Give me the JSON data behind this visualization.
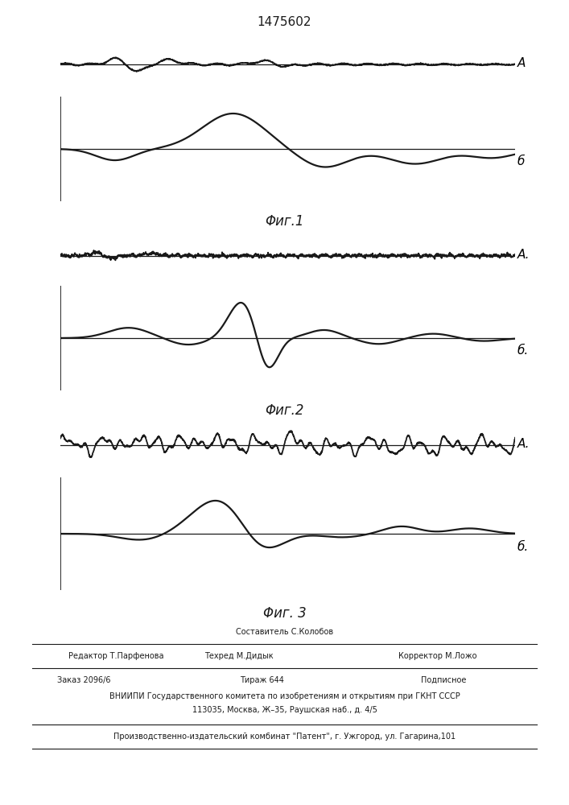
{
  "title": "1475602",
  "fig1_label_A": "A",
  "fig1_label_B": "б",
  "fig2_label_A": "A.",
  "fig2_label_B": "б.",
  "fig3_label_A": "A.",
  "fig3_label_B": "б.",
  "fig1_caption": "Φиг.1",
  "fig2_caption": "Φиг.2",
  "fig3_caption": "Φиг. 3",
  "footer_line1_left": "Редактор Т.Парфенова",
  "footer_line1_center": "Составитель С.Колобов",
  "footer_line2_center": "Техред М.Дидык",
  "footer_line2_right": "Корректор М.Ложо",
  "footer_order": "Заказ 2096/6",
  "footer_tirazh": "Тираж 644",
  "footer_podpisnoe": "Подписное",
  "footer_vniipи": "ВНИИПИ Государственного комитета по изобретениям и открытиям при ГКНТ СССР",
  "footer_address": "113035, Москва, Ж–35, Раушская наб., д. 4/5",
  "footer_patent": "Производственно-издательский комбинат \"Патент\", г. Ужгород, ул. Гагарина,101",
  "bg_color": "#ffffff",
  "line_color": "#1a1a1a"
}
